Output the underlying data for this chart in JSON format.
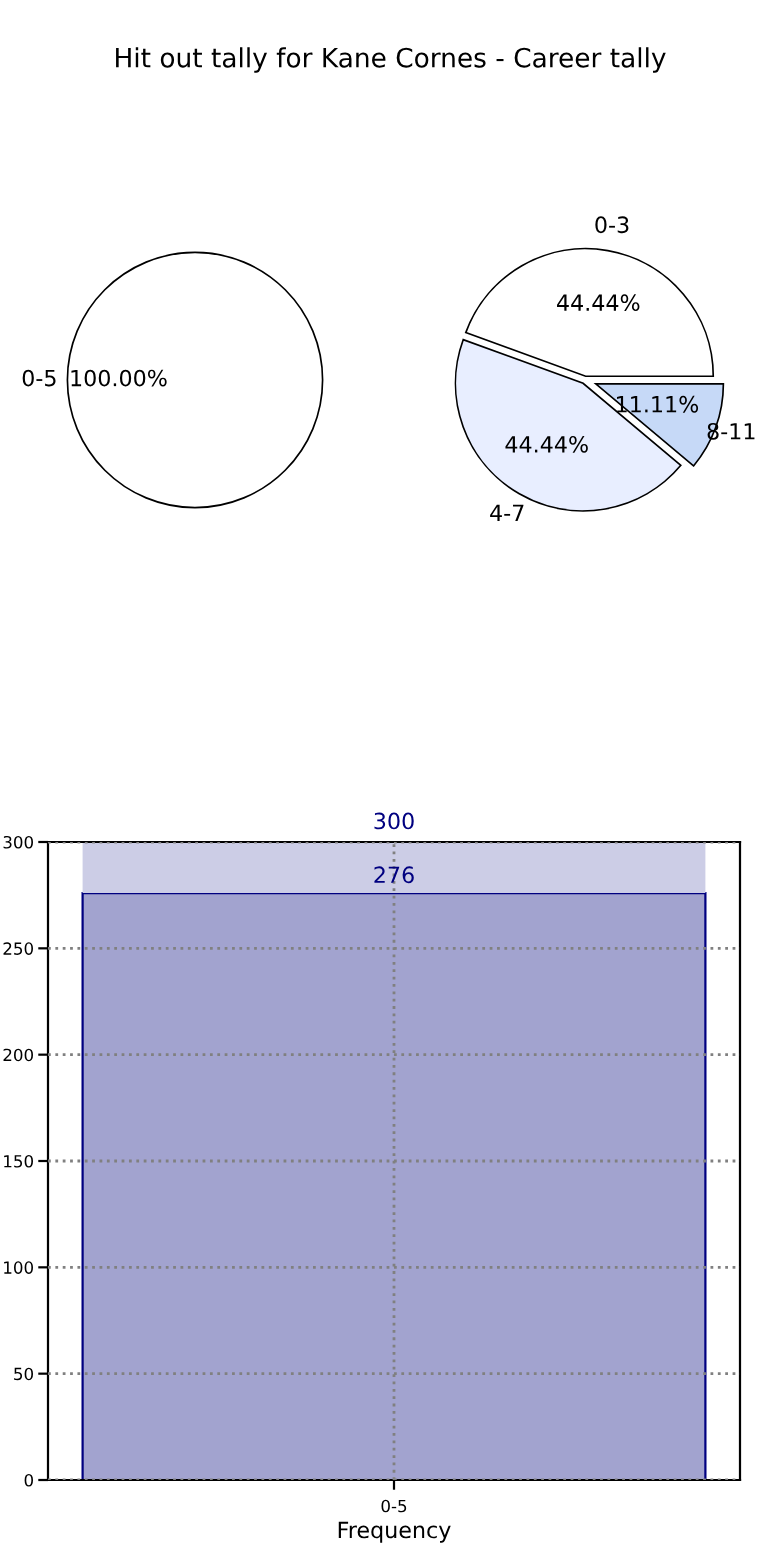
{
  "chart_data": [
    {
      "type": "pie",
      "title": "Hit out tally for Kane Cornes - Career tally",
      "categories": [
        "0-5"
      ],
      "values": [
        100
      ],
      "colors": [
        "#ffffff"
      ],
      "value_labels": [
        "100.00%"
      ]
    },
    {
      "type": "pie",
      "categories": [
        "0-3",
        "4-7",
        "8-11"
      ],
      "values": [
        44.44,
        44.44,
        11.11
      ],
      "colors": [
        "#ffffff",
        "#e8eeff",
        "#c6d9f7"
      ],
      "value_labels": [
        "44.44%",
        "44.44%",
        "11.11%"
      ]
    },
    {
      "type": "bar",
      "stacked": true,
      "categories": [
        "0-5"
      ],
      "xlabel": "Frequency",
      "ylim": [
        0,
        300
      ],
      "yticks": [
        0,
        50,
        100,
        150,
        200,
        250,
        300
      ],
      "grid": true,
      "legend": false,
      "totals": [
        "300"
      ],
      "series": [
        {
          "color": "#a2a3cf",
          "values": [
            276
          ],
          "value_labels": [
            "276"
          ]
        },
        {
          "color": "#cccde6",
          "values": [
            24
          ]
        }
      ]
    }
  ]
}
